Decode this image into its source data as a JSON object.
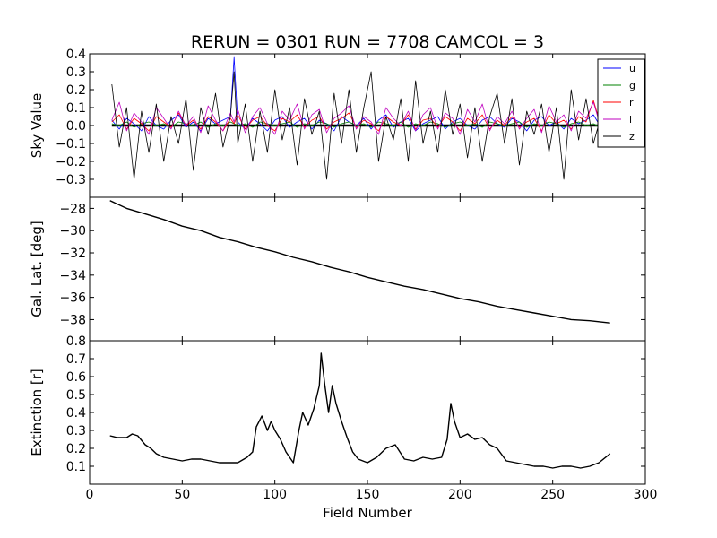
{
  "chart_data": {
    "type": "line",
    "title": "RERUN = 0301 RUN = 7708 CAMCOL = 3",
    "xlabel": "Field Number",
    "xlim": [
      0,
      300
    ],
    "xticks": [
      0,
      50,
      100,
      150,
      200,
      250,
      300
    ],
    "panels": [
      {
        "id": "sky",
        "ylabel": "Sky Value",
        "ylim": [
          -0.4,
          0.4
        ],
        "yticks": [
          -0.3,
          -0.2,
          -0.1,
          0.0,
          0.1,
          0.2,
          0.3,
          0.4
        ],
        "ytick_labels": [
          "−0.3",
          "−0.2",
          "−0.1",
          "0.0",
          "0.1",
          "0.2",
          "0.3",
          "0.4"
        ],
        "legend": {
          "position": "top-right",
          "entries": [
            "u",
            "g",
            "r",
            "i",
            "z"
          ]
        },
        "x": [
          12,
          16,
          20,
          24,
          28,
          32,
          36,
          40,
          44,
          48,
          52,
          56,
          60,
          64,
          68,
          72,
          76,
          78,
          80,
          84,
          88,
          92,
          96,
          100,
          104,
          108,
          112,
          116,
          120,
          124,
          128,
          132,
          136,
          140,
          144,
          148,
          152,
          156,
          160,
          164,
          168,
          172,
          176,
          180,
          184,
          188,
          192,
          196,
          200,
          204,
          208,
          212,
          216,
          220,
          224,
          228,
          232,
          236,
          240,
          244,
          248,
          252,
          256,
          260,
          264,
          268,
          272,
          276,
          280
        ],
        "series": [
          {
            "name": "u",
            "color": "#0000ff",
            "values": [
              0.03,
              -0.02,
              0.04,
              0.01,
              -0.03,
              0.05,
              0.0,
              -0.02,
              0.03,
              0.06,
              -0.01,
              0.02,
              -0.03,
              0.04,
              0.01,
              0.03,
              0.05,
              0.38,
              0.02,
              -0.02,
              0.04,
              0.01,
              -0.03,
              0.03,
              0.05,
              -0.01,
              0.02,
              0.04,
              -0.02,
              0.03,
              0.01,
              -0.03,
              0.05,
              0.02,
              0.0,
              0.04,
              -0.02,
              0.03,
              0.06,
              -0.01,
              0.02,
              0.04,
              -0.03,
              0.01,
              0.03,
              0.05,
              -0.02,
              0.02,
              0.04,
              0.0,
              -0.02,
              0.03,
              0.05,
              0.01,
              -0.01,
              0.04,
              0.02,
              -0.03,
              0.03,
              0.05,
              0.0,
              0.02,
              -0.02,
              0.04,
              0.01,
              0.03,
              0.06,
              -0.01,
              0.02
            ]
          },
          {
            "name": "g",
            "color": "#008000",
            "values": [
              0.01,
              0.0,
              0.02,
              -0.01,
              0.01,
              0.02,
              0.0,
              0.01,
              -0.01,
              0.02,
              0.01,
              0.0,
              0.02,
              -0.01,
              0.01,
              0.0,
              0.02,
              0.01,
              0.0,
              0.01,
              -0.01,
              0.02,
              0.01,
              0.0,
              0.01,
              0.02,
              -0.01,
              0.01,
              0.0,
              0.02,
              0.01,
              -0.01,
              0.01,
              0.02,
              0.0,
              0.01,
              -0.01,
              0.02,
              0.01,
              0.0,
              0.02,
              -0.01,
              0.01,
              0.0,
              0.02,
              0.01,
              -0.01,
              0.01,
              0.02,
              0.0,
              0.01,
              -0.01,
              0.02,
              0.01,
              0.0,
              0.01,
              0.02,
              -0.01,
              0.01,
              0.0,
              0.02,
              0.01,
              -0.01,
              0.01,
              0.02,
              0.0,
              0.01,
              -0.01,
              0.02
            ]
          },
          {
            "name": "r",
            "color": "#ff0000",
            "values": [
              0.02,
              0.06,
              -0.02,
              0.04,
              0.01,
              -0.03,
              0.05,
              0.02,
              -0.01,
              0.07,
              0.0,
              0.03,
              -0.02,
              0.05,
              0.02,
              -0.03,
              0.04,
              0.01,
              0.06,
              -0.02,
              0.03,
              0.05,
              0.0,
              -0.03,
              0.04,
              0.02,
              0.06,
              -0.01,
              0.03,
              0.05,
              -0.02,
              0.02,
              0.04,
              0.07,
              -0.01,
              0.03,
              0.01,
              -0.03,
              0.05,
              0.02,
              0.0,
              0.06,
              -0.02,
              0.03,
              0.04,
              -0.01,
              0.05,
              0.02,
              -0.03,
              0.04,
              0.01,
              0.06,
              -0.02,
              0.03,
              0.0,
              0.05,
              -0.01,
              0.02,
              0.04,
              -0.03,
              0.06,
              0.01,
              0.03,
              -0.02,
              0.05,
              0.02,
              0.14,
              0.0,
              0.03
            ]
          },
          {
            "name": "i",
            "color": "#bf00bf",
            "values": [
              0.03,
              0.13,
              -0.03,
              0.07,
              0.02,
              -0.05,
              0.1,
              0.04,
              -0.02,
              0.08,
              0.0,
              0.05,
              -0.04,
              0.11,
              0.03,
              -0.03,
              0.07,
              0.02,
              0.09,
              -0.04,
              0.05,
              0.1,
              0.01,
              -0.05,
              0.08,
              0.03,
              0.12,
              -0.02,
              0.06,
              0.09,
              -0.04,
              0.04,
              0.07,
              0.11,
              -0.02,
              0.05,
              0.02,
              -0.05,
              0.1,
              0.04,
              0.0,
              0.08,
              -0.03,
              0.06,
              0.1,
              -0.02,
              0.07,
              0.04,
              -0.05,
              0.09,
              0.02,
              0.12,
              -0.03,
              0.05,
              0.01,
              0.08,
              -0.02,
              0.04,
              0.09,
              -0.04,
              0.11,
              0.02,
              0.06,
              -0.03,
              0.08,
              0.04,
              0.13,
              -0.01,
              0.05
            ]
          },
          {
            "name": "z",
            "color": "#000000",
            "values": [
              0.23,
              -0.12,
              0.1,
              -0.3,
              0.08,
              -0.15,
              0.12,
              -0.2,
              0.05,
              -0.1,
              0.15,
              -0.25,
              0.1,
              -0.05,
              0.18,
              -0.12,
              0.05,
              0.3,
              -0.1,
              0.12,
              -0.2,
              0.08,
              -0.15,
              0.2,
              -0.08,
              0.1,
              -0.22,
              0.15,
              -0.05,
              0.08,
              -0.3,
              0.18,
              -0.1,
              0.2,
              -0.15,
              0.1,
              0.3,
              -0.2,
              0.05,
              -0.08,
              0.15,
              -0.2,
              0.25,
              -0.1,
              0.08,
              -0.15,
              0.2,
              -0.05,
              0.12,
              -0.18,
              0.1,
              -0.2,
              0.05,
              0.18,
              -0.1,
              0.15,
              -0.22,
              0.08,
              -0.05,
              0.12,
              -0.15,
              0.1,
              -0.3,
              0.2,
              -0.08,
              0.15,
              -0.1,
              0.05,
              0.02
            ]
          }
        ]
      },
      {
        "id": "gallat",
        "ylabel": "Gal. Lat. [deg]",
        "ylim": [
          -39.9,
          -27
        ],
        "yticks": [
          -28,
          -30,
          -32,
          -34,
          -36,
          -38
        ],
        "ytick_labels": [
          "−28",
          "−30",
          "−32",
          "−34",
          "−36",
          "−38"
        ],
        "series": [
          {
            "name": "",
            "color": "#000000",
            "x": [
              11,
              20,
              30,
              40,
              50,
              60,
              70,
              80,
              90,
              100,
              110,
              120,
              130,
              140,
              150,
              160,
              170,
              180,
              190,
              200,
              210,
              220,
              230,
              240,
              250,
              260,
              270,
              281
            ],
            "values": [
              -27.3,
              -28.0,
              -28.5,
              -29.0,
              -29.6,
              -30.0,
              -30.6,
              -31.0,
              -31.5,
              -31.9,
              -32.4,
              -32.8,
              -33.3,
              -33.7,
              -34.2,
              -34.6,
              -35.0,
              -35.3,
              -35.7,
              -36.1,
              -36.4,
              -36.8,
              -37.1,
              -37.4,
              -37.7,
              -38.0,
              -38.1,
              -38.3
            ]
          }
        ]
      },
      {
        "id": "ext",
        "ylabel": "Extinction [r]",
        "ylim": [
          0,
          0.8
        ],
        "yticks": [
          0.1,
          0.2,
          0.3,
          0.4,
          0.5,
          0.6,
          0.7,
          0.8
        ],
        "ytick_labels": [
          "0.1",
          "0.2",
          "0.3",
          "0.4",
          "0.5",
          "0.6",
          "0.7",
          "0.8"
        ],
        "series": [
          {
            "name": "",
            "color": "#000000",
            "x": [
              11,
              15,
              20,
              23,
              26,
              30,
              33,
              36,
              40,
              45,
              50,
              55,
              60,
              65,
              70,
              75,
              80,
              85,
              88,
              90,
              93,
              96,
              98,
              100,
              103,
              106,
              110,
              113,
              115,
              118,
              121,
              124,
              125,
              127,
              129,
              131,
              133,
              136,
              139,
              142,
              145,
              150,
              155,
              160,
              165,
              170,
              175,
              180,
              185,
              190,
              193,
              195,
              197,
              200,
              204,
              208,
              212,
              216,
              220,
              225,
              230,
              235,
              240,
              245,
              250,
              255,
              260,
              265,
              270,
              275,
              281
            ],
            "values": [
              0.27,
              0.26,
              0.26,
              0.28,
              0.27,
              0.22,
              0.2,
              0.17,
              0.15,
              0.14,
              0.13,
              0.14,
              0.14,
              0.13,
              0.12,
              0.12,
              0.12,
              0.15,
              0.18,
              0.32,
              0.38,
              0.3,
              0.35,
              0.3,
              0.25,
              0.18,
              0.12,
              0.3,
              0.4,
              0.33,
              0.42,
              0.55,
              0.73,
              0.55,
              0.4,
              0.55,
              0.45,
              0.35,
              0.26,
              0.18,
              0.14,
              0.12,
              0.15,
              0.2,
              0.22,
              0.14,
              0.13,
              0.15,
              0.14,
              0.15,
              0.25,
              0.45,
              0.35,
              0.26,
              0.28,
              0.25,
              0.26,
              0.22,
              0.2,
              0.13,
              0.12,
              0.11,
              0.1,
              0.1,
              0.09,
              0.1,
              0.1,
              0.09,
              0.1,
              0.12,
              0.17
            ]
          }
        ]
      }
    ]
  }
}
